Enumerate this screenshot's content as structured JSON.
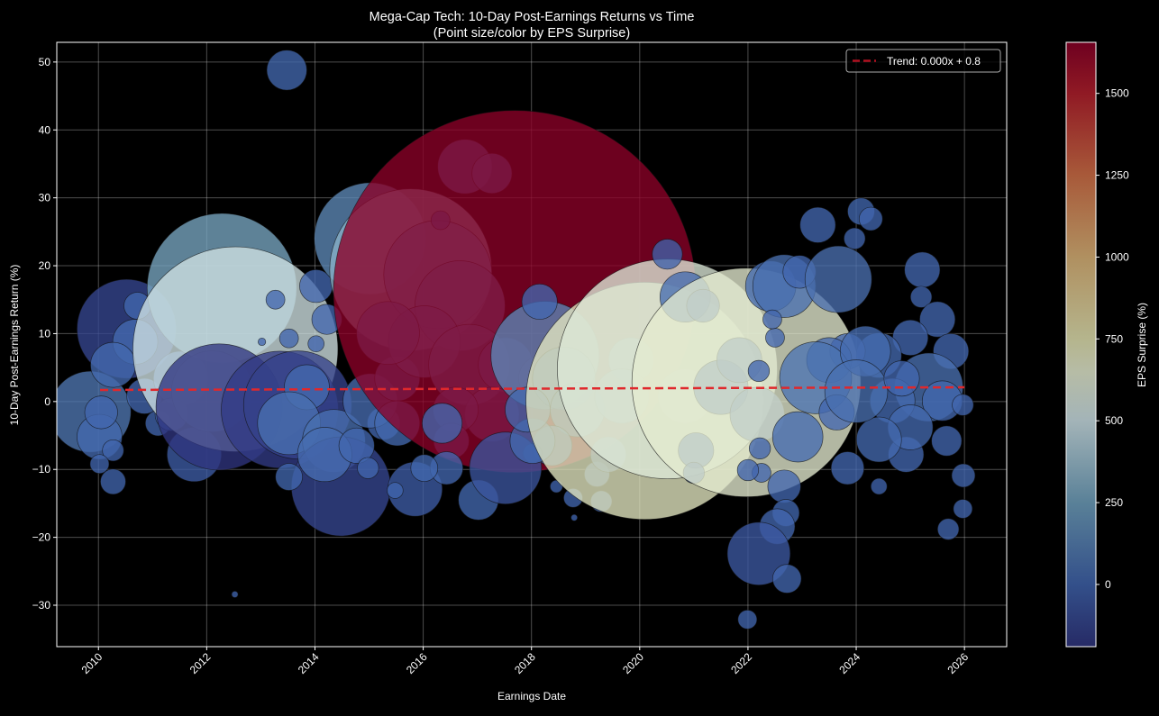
{
  "chart_data": {
    "type": "scatter",
    "title": "Mega-Cap Tech: 10-Day Post-Earnings Returns vs Time",
    "subtitle": "(Point size/color by EPS Surprise)",
    "xlabel": "Earnings Date",
    "ylabel": "10-Day Post-Earnings Return (%)",
    "xlim": [
      2009.23,
      2026.78
    ],
    "ylim": [
      -36.1,
      52.9
    ],
    "xticks": [
      2010,
      2012,
      2014,
      2016,
      2018,
      2020,
      2022,
      2024,
      2026
    ],
    "xtick_labels": [
      "2010",
      "2012",
      "2014",
      "2016",
      "2018",
      "2020",
      "2022",
      "2024",
      "2026"
    ],
    "yticks": [
      -30,
      -20,
      -10,
      0,
      10,
      20,
      30,
      40,
      50
    ],
    "ytick_labels": [
      "−30",
      "−20",
      "−10",
      "0",
      "10",
      "20",
      "30",
      "40",
      "50"
    ],
    "grid": true,
    "legend_placement": "top-right",
    "point_fields": [
      "earnings_date_year",
      "return_pct",
      "eps_surprise_pct"
    ],
    "points": [
      [
        2009.85,
        -1.5,
        77
      ],
      [
        2010.02,
        -5.2,
        22
      ],
      [
        2010.05,
        -1.6,
        11
      ],
      [
        2010.27,
        -7.2,
        4
      ],
      [
        2010.27,
        -11.8,
        6
      ],
      [
        2010.02,
        -9.2,
        3
      ],
      [
        2010.52,
        10.7,
        -117
      ],
      [
        2010.68,
        8.8,
        22
      ],
      [
        2010.72,
        14.1,
        7
      ],
      [
        2010.27,
        5.4,
        22
      ],
      [
        2010.85,
        0.8,
        13
      ],
      [
        2011.1,
        -3.2,
        6
      ],
      [
        2011.52,
        3.4,
        33
      ],
      [
        2011.35,
        -1.9,
        11
      ],
      [
        2011.77,
        -7.8,
        -33
      ],
      [
        2012.28,
        16.7,
        273
      ],
      [
        2012.1,
        1.5,
        77
      ],
      [
        2012.53,
        7.7,
        520
      ],
      [
        2012.23,
        -0.8,
        -193
      ],
      [
        2013.35,
        -1.2,
        -165
      ],
      [
        2013.68,
        -0.5,
        -140
      ],
      [
        2013.48,
        48.8,
        17
      ],
      [
        2013.27,
        15.0,
        3
      ],
      [
        2013.52,
        9.3,
        3
      ],
      [
        2014.02,
        17.0,
        11
      ],
      [
        2014.22,
        12.1,
        9
      ],
      [
        2014.02,
        8.5,
        2
      ],
      [
        2013.85,
        2.1,
        22
      ],
      [
        2013.52,
        -3.2,
        45
      ],
      [
        2014.35,
        -5.8,
        45
      ],
      [
        2014.48,
        -12.5,
        -117
      ],
      [
        2014.18,
        -7.8,
        33
      ],
      [
        2014.77,
        -6.5,
        13
      ],
      [
        2014.98,
        -9.8,
        4
      ],
      [
        2013.52,
        -11.1,
        7
      ],
      [
        2015.27,
        -3.2,
        11
      ],
      [
        2015.02,
        0.1,
        33
      ],
      [
        2015.02,
        24.0,
        150
      ],
      [
        2015.52,
        3.4,
        22
      ],
      [
        2015.52,
        -3.2,
        22
      ],
      [
        2015.85,
        -12.9,
        -33
      ],
      [
        2015.48,
        -13.1,
        2
      ],
      [
        2012.52,
        -28.4,
        0.1
      ],
      [
        2013.02,
        8.8,
        0.2
      ],
      [
        2015.77,
        19.4,
        322
      ],
      [
        2016.27,
        18.7,
        140
      ],
      [
        2016.77,
        34.6,
        33
      ],
      [
        2017.27,
        33.6,
        17
      ],
      [
        2016.68,
        14.1,
        96
      ],
      [
        2016.02,
        8.8,
        60
      ],
      [
        2016.85,
        5.4,
        77
      ],
      [
        2017.52,
        5.4,
        33
      ],
      [
        2018.18,
        3.4,
        22
      ],
      [
        2017.27,
        -1.9,
        33
      ],
      [
        2016.6,
        -1.2,
        22
      ],
      [
        2015.35,
        10.1,
        45
      ],
      [
        2016.32,
        26.7,
        3
      ],
      [
        2016.52,
        -5.8,
        13
      ],
      [
        2017.69,
        16.2,
        1650
      ],
      [
        2018.25,
        6.8,
        140
      ],
      [
        2018.15,
        14.7,
        13
      ],
      [
        2018.6,
        3.4,
        45
      ],
      [
        2018.85,
        -1.2,
        33
      ],
      [
        2018.38,
        -6.5,
        17
      ],
      [
        2018.02,
        -7.6,
        3
      ],
      [
        2018.77,
        -14.2,
        3
      ],
      [
        2018.46,
        -12.5,
        1
      ],
      [
        2018.79,
        -17.1,
        0.1
      ],
      [
        2019.29,
        -14.7,
        4
      ],
      [
        2019.21,
        -10.7,
        6
      ],
      [
        2019.42,
        -7.8,
        13
      ],
      [
        2016.35,
        -3.2,
        17
      ],
      [
        2016.43,
        -9.8,
        11
      ],
      [
        2017.02,
        -14.5,
        17
      ],
      [
        2017.52,
        -9.8,
        -60
      ],
      [
        2018.02,
        -5.8,
        22
      ],
      [
        2017.93,
        -1.2,
        22
      ],
      [
        2016.02,
        -9.8,
        7
      ],
      [
        2019.84,
        6.1,
        22
      ],
      [
        2019.67,
        0.8,
        33
      ],
      [
        2020.84,
        0.8,
        33
      ],
      [
        2020.09,
        0.1,
        700
      ],
      [
        2020.51,
        4.8,
        600
      ],
      [
        2020.51,
        21.7,
        -9
      ],
      [
        2020.84,
        15.4,
        28
      ],
      [
        2021.17,
        14.1,
        11
      ],
      [
        2021.04,
        -7.2,
        13
      ],
      [
        2021.0,
        -10.5,
        4
      ],
      [
        2021.5,
        2.1,
        33
      ],
      [
        2021.84,
        6.1,
        22
      ],
      [
        2022.17,
        -1.9,
        33
      ],
      [
        2021.97,
        2.8,
        650
      ],
      [
        2022.42,
        17.0,
        28
      ],
      [
        2022.67,
        17.0,
        45
      ],
      [
        2022.95,
        19.1,
        11
      ],
      [
        2023.29,
        26.0,
        13
      ],
      [
        2024.09,
        28.0,
        7
      ],
      [
        2024.27,
        26.9,
        5
      ],
      [
        2023.97,
        24.0,
        4
      ],
      [
        2025.22,
        19.4,
        13
      ],
      [
        2025.2,
        15.4,
        4
      ],
      [
        2023.67,
        18.0,
        51
      ],
      [
        2025.5,
        12.1,
        13
      ],
      [
        2025.75,
        7.4,
        13
      ],
      [
        2025.0,
        9.4,
        13
      ],
      [
        2024.42,
        6.8,
        22
      ],
      [
        2023.84,
        7.4,
        13
      ],
      [
        2023.5,
        6.1,
        22
      ],
      [
        2023.25,
        3.5,
        60
      ],
      [
        2024.17,
        7.4,
        28
      ],
      [
        2025.34,
        2.1,
        54
      ],
      [
        2024.67,
        0.1,
        22
      ],
      [
        2025.59,
        0.1,
        17
      ],
      [
        2025.97,
        -0.5,
        4
      ],
      [
        2025.67,
        -5.8,
        9
      ],
      [
        2024.92,
        -7.8,
        13
      ],
      [
        2025.0,
        -3.8,
        22
      ],
      [
        2024.42,
        -5.6,
        22
      ],
      [
        2023.84,
        -9.8,
        11
      ],
      [
        2023.64,
        -1.6,
        13
      ],
      [
        2022.92,
        -5.2,
        28
      ],
      [
        2022.67,
        -12.5,
        11
      ],
      [
        2022.7,
        -16.4,
        7
      ],
      [
        2022.54,
        -18.4,
        13
      ],
      [
        2022.2,
        -22.4,
        -45
      ],
      [
        2022.72,
        -26.1,
        8
      ],
      [
        2021.99,
        -32.1,
        3
      ],
      [
        2025.7,
        -18.8,
        4
      ],
      [
        2025.97,
        -15.8,
        3
      ],
      [
        2025.98,
        -10.9,
        5
      ],
      [
        2024.42,
        -12.5,
        2
      ],
      [
        2022.22,
        -6.9,
        4
      ],
      [
        2022.25,
        -10.5,
        3
      ],
      [
        2022.0,
        -10.1,
        4
      ],
      [
        2022.5,
        9.4,
        3
      ],
      [
        2022.2,
        4.5,
        4
      ],
      [
        2022.45,
        12.1,
        3
      ],
      [
        2024.0,
        1.5,
        45
      ],
      [
        2024.84,
        3.4,
        13
      ]
    ],
    "trend": {
      "label": "Trend: 0.000x + 0.8",
      "x": [
        2010.03,
        2026.0
      ],
      "y": [
        1.7,
        2.1
      ],
      "color": "#d62728",
      "style": "dashed"
    },
    "colorbar": {
      "label": "EPS Surprise (%)",
      "range": [
        -190,
        1656
      ],
      "ticks": [
        0,
        250,
        500,
        750,
        1000,
        1250,
        1500
      ],
      "tick_labels": [
        "0",
        "250",
        "500",
        "750",
        "1000",
        "1250",
        "1500"
      ],
      "colormap_stops": [
        [
          -190,
          "#30357f"
        ],
        [
          0,
          "#4064ad"
        ],
        [
          250,
          "#70a1be"
        ],
        [
          500,
          "#cce1e6"
        ],
        [
          650,
          "#e4ebcf"
        ],
        [
          750,
          "#e2e2b0"
        ],
        [
          1000,
          "#dcb478"
        ],
        [
          1250,
          "#d27048"
        ],
        [
          1500,
          "#b4202d"
        ],
        [
          1656,
          "#8a0028"
        ]
      ]
    }
  }
}
